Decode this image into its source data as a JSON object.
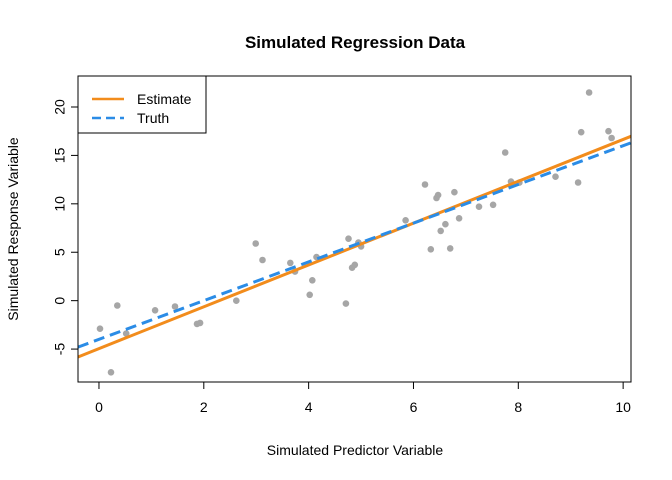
{
  "chart_data": {
    "type": "scatter",
    "title": "Simulated Regression Data",
    "xlabel": "Simulated Predictor Variable",
    "ylabel": "Simulated Response Variable",
    "xlim": [
      -0.4,
      10.15
    ],
    "ylim": [
      -8.4,
      23.2
    ],
    "xticks": [
      0,
      2,
      4,
      6,
      8,
      10
    ],
    "yticks": [
      -5,
      0,
      5,
      10,
      15,
      20
    ],
    "grid": false,
    "legend_position": "top-left",
    "points": {
      "color": "#a6a6a6",
      "x": [
        0.02,
        0.23,
        0.35,
        0.52,
        1.07,
        1.45,
        1.87,
        1.93,
        2.62,
        2.99,
        3.12,
        3.65,
        3.74,
        4.02,
        4.07,
        4.15,
        4.71,
        4.76,
        4.83,
        4.88,
        4.95,
        5.0,
        5.85,
        6.22,
        6.33,
        6.44,
        6.47,
        6.52,
        6.61,
        6.7,
        6.78,
        6.87,
        7.25,
        7.52,
        7.75,
        7.86,
        8.02,
        8.71,
        9.14,
        9.2,
        9.35,
        9.72,
        9.78
      ],
      "y": [
        -2.9,
        -7.4,
        -0.5,
        -3.4,
        -1.0,
        -0.6,
        -2.4,
        -2.3,
        0.0,
        5.9,
        4.2,
        3.9,
        3.0,
        0.6,
        2.1,
        4.5,
        -0.3,
        6.4,
        3.4,
        3.7,
        6.0,
        5.6,
        8.3,
        12.0,
        5.3,
        10.6,
        10.9,
        7.2,
        7.9,
        5.4,
        11.2,
        8.5,
        9.7,
        9.9,
        15.3,
        12.3,
        12.2,
        12.8,
        12.2,
        17.4,
        21.5,
        17.5,
        16.8
      ]
    },
    "series": [
      {
        "name": "Estimate",
        "type": "line",
        "color": "#f28c1c",
        "dash": "solid",
        "intercept": -4.95,
        "slope": 2.16
      },
      {
        "name": "Truth",
        "type": "line",
        "color": "#2b8ce6",
        "dash": "dashed",
        "intercept": -4.0,
        "slope": 2.0
      }
    ]
  }
}
